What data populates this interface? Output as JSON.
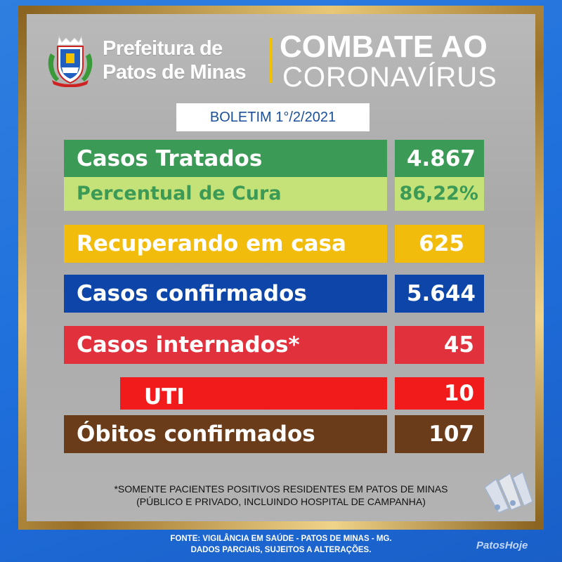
{
  "header": {
    "prefeitura_line1": "Prefeitura de",
    "prefeitura_line2": "Patos de Minas",
    "title_line1": "COMBATE AO",
    "title_line2": "CORONAVÍRUS",
    "crest_icon": "city-coat-of-arms-icon"
  },
  "bulletin": "BOLETIM 1°/2/2021",
  "rows": [
    {
      "label": "Casos Tratados",
      "value": "4.867",
      "color": "#3c9a57"
    },
    {
      "label": "Percentual de Cura",
      "value": "86,22%",
      "color": "#c4e277",
      "text_color": "#3c9a57"
    },
    {
      "label": "Recuperando em casa",
      "value": "625",
      "color": "#f2bc0c"
    },
    {
      "label": "Casos confirmados",
      "value": "5.644",
      "color": "#0d46a8"
    },
    {
      "label": "Casos internados*",
      "value": "45",
      "color": "#e0313d"
    },
    {
      "label": "UTI",
      "value": "10",
      "color": "#f21b1b"
    },
    {
      "label": "Óbitos confirmados",
      "value": "107",
      "color": "#6b3c19"
    }
  ],
  "footnote_line1": "*SOMENTE PACIENTES POSITIVOS RESIDENTES EM PATOS DE MINAS",
  "footnote_line2": "(PÚBLICO E PRIVADO, INCLUINDO HOSPITAL DE CAMPANHA)",
  "source_line1": "FONTE: VIGILÂNCIA EM SAÚDE - PATOS DE MINAS - MG.",
  "source_line2": "DADOS PARCIAIS, SUJEITOS A ALTERAÇÕES.",
  "brand": "PatosHoje",
  "watermark_icon": "patoshoje-logo-icon"
}
